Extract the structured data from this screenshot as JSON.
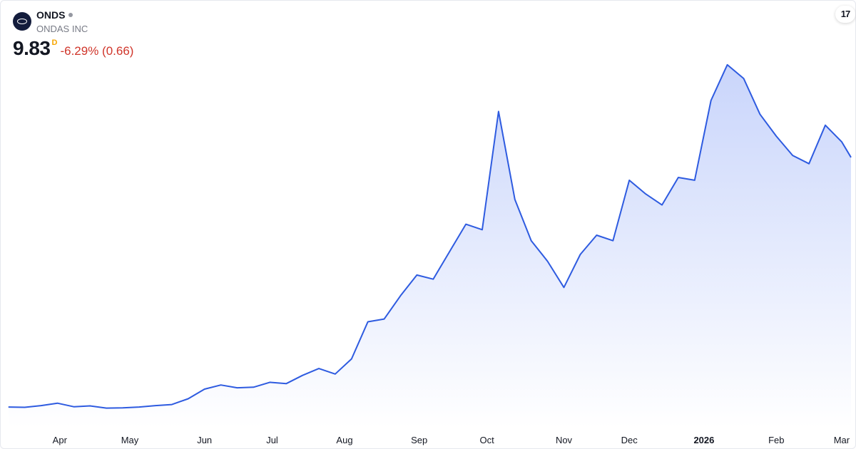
{
  "header": {
    "ticker": "ONDS",
    "company": "ONDAS INC",
    "price": "9.83",
    "timeframe": "D",
    "change": "-6.29% (0.66)",
    "logo_icon": "ondas-logo-icon",
    "brand_icon": "tradingview-logo-icon",
    "brand_text": "17"
  },
  "colors": {
    "line": "#2e5be0",
    "fill_top": "#c9d5fb",
    "fill_bottom": "#ffffff",
    "change_negative": "#d0352a",
    "timeframe": "#f7a600"
  },
  "chart_data": {
    "type": "area",
    "y_axis_visible": false,
    "grid": false,
    "x_tick_labels": [
      {
        "label": "Apr",
        "date": "2025-04-01",
        "bold": false
      },
      {
        "label": "May",
        "date": "2025-05-01",
        "bold": false
      },
      {
        "label": "Jun",
        "date": "2025-06-02",
        "bold": false
      },
      {
        "label": "Jul",
        "date": "2025-07-01",
        "bold": false
      },
      {
        "label": "Aug",
        "date": "2025-08-01",
        "bold": false
      },
      {
        "label": "Sep",
        "date": "2025-09-02",
        "bold": false
      },
      {
        "label": "Oct",
        "date": "2025-10-01",
        "bold": false
      },
      {
        "label": "Nov",
        "date": "2025-11-03",
        "bold": false
      },
      {
        "label": "Dec",
        "date": "2025-12-01",
        "bold": false
      },
      {
        "label": "2026",
        "date": "2026-01-02",
        "bold": true
      },
      {
        "label": "Feb",
        "date": "2026-02-02",
        "bold": false
      },
      {
        "label": "Mar",
        "date": "2026-03-02",
        "bold": false
      }
    ],
    "series": [
      {
        "points": [
          [
            "2025-03-10",
            0.75
          ],
          [
            "2025-03-17",
            0.74
          ],
          [
            "2025-03-24",
            0.8
          ],
          [
            "2025-03-31",
            0.89
          ],
          [
            "2025-04-07",
            0.76
          ],
          [
            "2025-04-14",
            0.79
          ],
          [
            "2025-04-21",
            0.71
          ],
          [
            "2025-04-28",
            0.72
          ],
          [
            "2025-05-05",
            0.75
          ],
          [
            "2025-05-12",
            0.8
          ],
          [
            "2025-05-19",
            0.84
          ],
          [
            "2025-05-26",
            1.05
          ],
          [
            "2025-06-02",
            1.4
          ],
          [
            "2025-06-09",
            1.55
          ],
          [
            "2025-06-16",
            1.45
          ],
          [
            "2025-06-23",
            1.47
          ],
          [
            "2025-06-30",
            1.65
          ],
          [
            "2025-07-07",
            1.6
          ],
          [
            "2025-07-14",
            1.9
          ],
          [
            "2025-07-21",
            2.15
          ],
          [
            "2025-07-28",
            1.95
          ],
          [
            "2025-08-04",
            2.5
          ],
          [
            "2025-08-11",
            3.85
          ],
          [
            "2025-08-18",
            3.95
          ],
          [
            "2025-08-25",
            4.8
          ],
          [
            "2025-09-01",
            5.55
          ],
          [
            "2025-09-08",
            5.4
          ],
          [
            "2025-09-15",
            6.4
          ],
          [
            "2025-09-22",
            7.4
          ],
          [
            "2025-09-29",
            7.2
          ],
          [
            "2025-10-06",
            11.5
          ],
          [
            "2025-10-13",
            8.3
          ],
          [
            "2025-10-20",
            6.8
          ],
          [
            "2025-10-27",
            6.05
          ],
          [
            "2025-11-03",
            5.1
          ],
          [
            "2025-11-10",
            6.3
          ],
          [
            "2025-11-17",
            7.0
          ],
          [
            "2025-11-24",
            6.8
          ],
          [
            "2025-12-01",
            9.0
          ],
          [
            "2025-12-08",
            8.5
          ],
          [
            "2025-12-15",
            8.1
          ],
          [
            "2025-12-22",
            9.1
          ],
          [
            "2025-12-29",
            9.0
          ],
          [
            "2026-01-05",
            11.9
          ],
          [
            "2026-01-12",
            13.2
          ],
          [
            "2026-01-19",
            12.7
          ],
          [
            "2026-01-26",
            11.4
          ],
          [
            "2026-02-02",
            10.6
          ],
          [
            "2026-02-09",
            9.9
          ],
          [
            "2026-02-16",
            9.6
          ],
          [
            "2026-02-23",
            11.0
          ],
          [
            "2026-03-02",
            10.4
          ],
          [
            "2026-03-06",
            9.83
          ]
        ]
      }
    ],
    "x_range": [
      "2025-03-07",
      "2026-03-06"
    ],
    "y_range": [
      0,
      14
    ]
  }
}
